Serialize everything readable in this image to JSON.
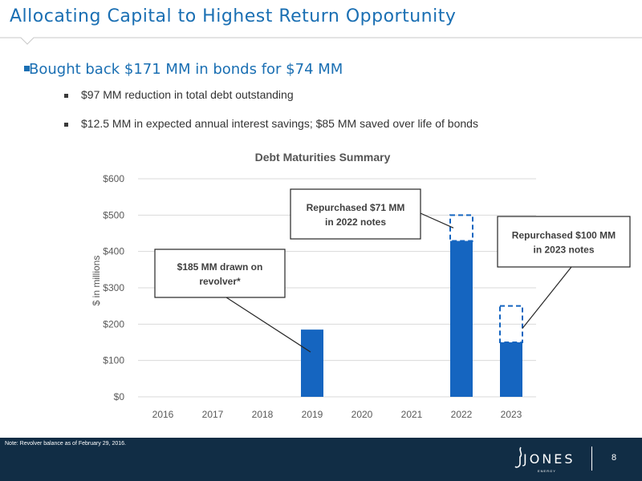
{
  "slide": {
    "title": "Allocating Capital to Highest Return Opportunity",
    "bullets": {
      "main": "Bought back $171 MM in bonds for $74 MM",
      "sub1": "$97 MM reduction in total debt outstanding",
      "sub2": "$12.5 MM in expected annual interest savings; $85 MM saved over life of bonds"
    },
    "note": "Note: Revolver balance as of February 29, 2016.",
    "logo_text": "JONES",
    "logo_sub": "ENERGY",
    "page_number": "8"
  },
  "colors": {
    "title_blue": "#1a6fb3",
    "bar_blue": "#1565c0",
    "footer_navy": "#112d45"
  },
  "icons": [
    "jones-logo-icon",
    "bullet-square-icon"
  ],
  "chart_data": {
    "type": "bar",
    "title": "Debt Maturities Summary",
    "ylabel": "$ in millions",
    "xlabel": "",
    "categories": [
      "2016",
      "2017",
      "2018",
      "2019",
      "2020",
      "2021",
      "2022",
      "2023"
    ],
    "values": [
      0,
      0,
      0,
      185,
      0,
      0,
      429,
      150
    ],
    "repurchased": [
      0,
      0,
      0,
      0,
      0,
      0,
      71,
      100
    ],
    "ylim": [
      0,
      600
    ],
    "yticks": [
      0,
      100,
      200,
      300,
      400,
      500,
      600
    ],
    "ytick_labels": [
      "$0",
      "$100",
      "$200",
      "$300",
      "$400",
      "$500",
      "$600"
    ],
    "grid": true,
    "annotations": [
      {
        "category": "2019",
        "text_line1": "$185 MM drawn on",
        "text_line2": "revolver*"
      },
      {
        "category": "2022",
        "text_line1": "Repurchased $71 MM",
        "text_line2": "in 2022 notes"
      },
      {
        "category": "2023",
        "text_line1": "Repurchased $100 MM",
        "text_line2": "in 2023 notes"
      }
    ]
  }
}
